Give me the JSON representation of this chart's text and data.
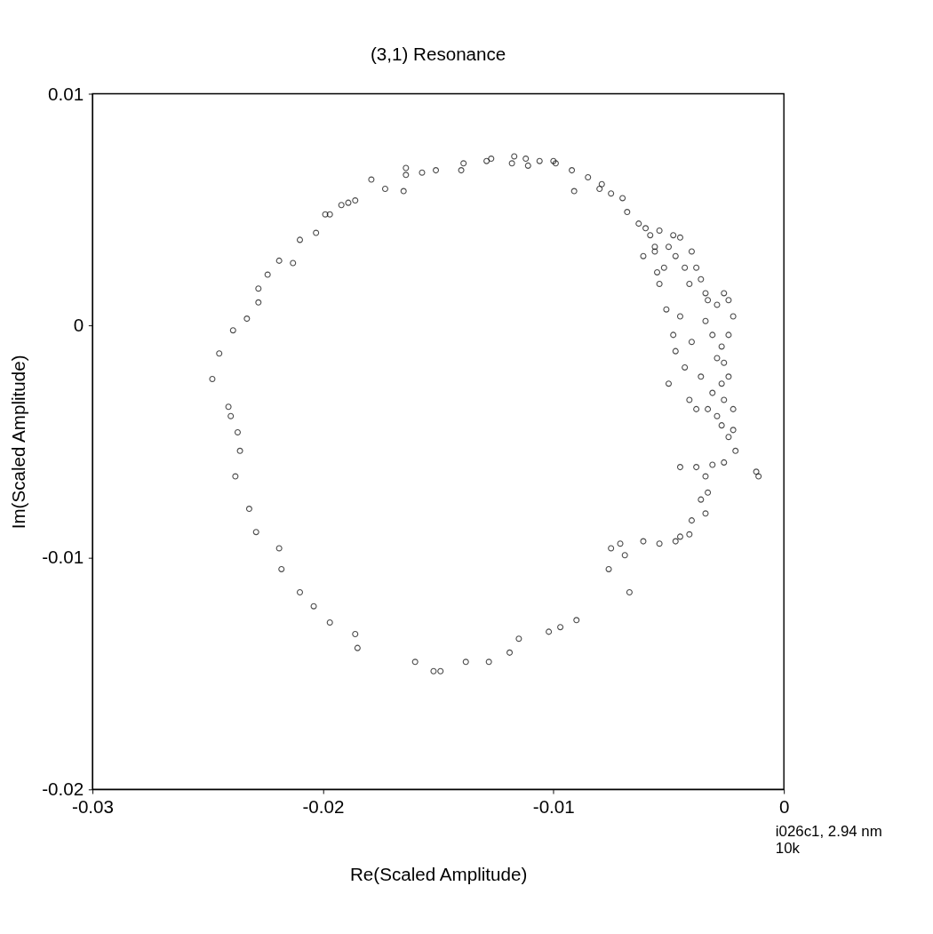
{
  "chart_data": {
    "type": "scatter",
    "title": "(3,1) Resonance",
    "xlabel": "Re(Scaled Amplitude)",
    "ylabel": "Im(Scaled Amplitude)",
    "xlim": [
      -0.03,
      0
    ],
    "ylim": [
      -0.02,
      0.01
    ],
    "xticks": [
      -0.03,
      -0.02,
      -0.01,
      0
    ],
    "yticks": [
      -0.02,
      -0.01,
      0,
      0.01
    ],
    "grid": false,
    "marker": "circle",
    "annotations": [
      "i026c1, 2.94 nm",
      "10k"
    ],
    "series": [
      {
        "color": "#000000",
        "x": [
          -0.0248,
          -0.0245,
          -0.0241,
          -0.024,
          -0.0239,
          -0.0237,
          -0.0238,
          -0.0236,
          -0.0233,
          -0.0232,
          -0.0229,
          -0.0228,
          -0.0228,
          -0.0224,
          -0.0219,
          -0.0219,
          -0.0218,
          -0.0213,
          -0.021,
          -0.0203,
          -0.021,
          -0.0204,
          -0.0197,
          -0.0199,
          -0.0197,
          -0.0192,
          -0.0189,
          -0.0186,
          -0.0186,
          -0.0185,
          -0.0179,
          -0.0173,
          -0.0165,
          -0.0164,
          -0.0164,
          -0.016,
          -0.0157,
          -0.0151,
          -0.0152,
          -0.0149,
          -0.014,
          -0.0139,
          -0.0138,
          -0.0129,
          -0.0127,
          -0.0128,
          -0.0119,
          -0.0118,
          -0.0117,
          -0.0115,
          -0.0112,
          -0.0111,
          -0.0106,
          -0.01,
          -0.0099,
          -0.0102,
          -0.0097,
          -0.009,
          -0.0092,
          -0.0091,
          -0.0085,
          -0.008,
          -0.0079,
          -0.0075,
          -0.0076,
          -0.0075,
          -0.0071,
          -0.0069,
          -0.0067,
          -0.007,
          -0.0068,
          -0.0063,
          -0.006,
          -0.0058,
          -0.0056,
          -0.0054,
          -0.0048,
          -0.005,
          -0.0047,
          -0.0043,
          -0.0041,
          -0.0038,
          -0.0036,
          -0.0034,
          -0.0033,
          -0.0029,
          -0.0026,
          -0.0024,
          -0.0022,
          -0.0024,
          -0.0027,
          -0.0031,
          -0.0034,
          -0.0029,
          -0.0026,
          -0.0024,
          -0.0027,
          -0.0031,
          -0.0026,
          -0.0022,
          -0.0029,
          -0.0027,
          -0.0033,
          -0.0022,
          -0.0024,
          -0.0021,
          -0.0012,
          -0.0011,
          -0.0026,
          -0.0031,
          -0.0038,
          -0.0034,
          -0.0033,
          -0.0036,
          -0.0034,
          -0.004,
          -0.0041,
          -0.0045,
          -0.0047,
          -0.0054,
          -0.0061,
          -0.0047,
          -0.0043,
          -0.005,
          -0.0041,
          -0.0054,
          -0.0052,
          -0.0056,
          -0.0045,
          -0.004,
          -0.0055,
          -0.0061,
          -0.0051,
          -0.0048,
          -0.0045,
          -0.004,
          -0.0036,
          -0.0038,
          -0.0045
        ],
        "values": [
          -0.0023,
          -0.0012,
          -0.0035,
          -0.0039,
          -0.0002,
          -0.0046,
          -0.0065,
          -0.0054,
          0.0003,
          -0.0079,
          -0.0089,
          0.001,
          0.0016,
          0.0022,
          0.0028,
          -0.0096,
          -0.0105,
          0.0027,
          0.0037,
          0.004,
          -0.0115,
          -0.0121,
          -0.0128,
          0.0048,
          0.0048,
          0.0052,
          0.0053,
          0.0054,
          -0.0133,
          -0.0139,
          0.0063,
          0.0059,
          0.0058,
          0.0068,
          0.0065,
          -0.0145,
          0.0066,
          0.0067,
          -0.0149,
          -0.0149,
          0.0067,
          0.007,
          -0.0145,
          0.0071,
          0.0072,
          -0.0145,
          -0.0141,
          0.007,
          0.0073,
          -0.0135,
          0.0072,
          0.0069,
          0.0071,
          0.0071,
          0.007,
          -0.0132,
          -0.013,
          -0.0127,
          0.0067,
          0.0058,
          0.0064,
          0.0059,
          0.0061,
          0.0057,
          -0.0105,
          -0.0096,
          -0.0094,
          -0.0099,
          -0.0115,
          0.0055,
          0.0049,
          0.0044,
          0.0042,
          0.0039,
          0.0034,
          0.0041,
          0.0039,
          0.0034,
          0.003,
          0.0025,
          0.0018,
          0.0025,
          0.002,
          0.0014,
          0.0011,
          0.0009,
          0.0014,
          0.0011,
          0.0004,
          -0.0004,
          -0.0009,
          -0.0004,
          0.0002,
          -0.0014,
          -0.0016,
          -0.0022,
          -0.0025,
          -0.0029,
          -0.0032,
          -0.0036,
          -0.0039,
          -0.0043,
          -0.0036,
          -0.0045,
          -0.0048,
          -0.0054,
          -0.0063,
          -0.0065,
          -0.0059,
          -0.006,
          -0.0061,
          -0.0065,
          -0.0072,
          -0.0075,
          -0.0081,
          -0.0084,
          -0.009,
          -0.0091,
          -0.0093,
          -0.0094,
          -0.0093,
          -0.0011,
          -0.0018,
          -0.0025,
          -0.0032,
          0.0018,
          0.0025,
          0.0032,
          0.0038,
          0.0032,
          0.0023,
          0.003,
          0.0007,
          -0.0004,
          0.0004,
          -0.0007,
          -0.0022,
          -0.0036,
          -0.0061
        ]
      }
    ]
  }
}
